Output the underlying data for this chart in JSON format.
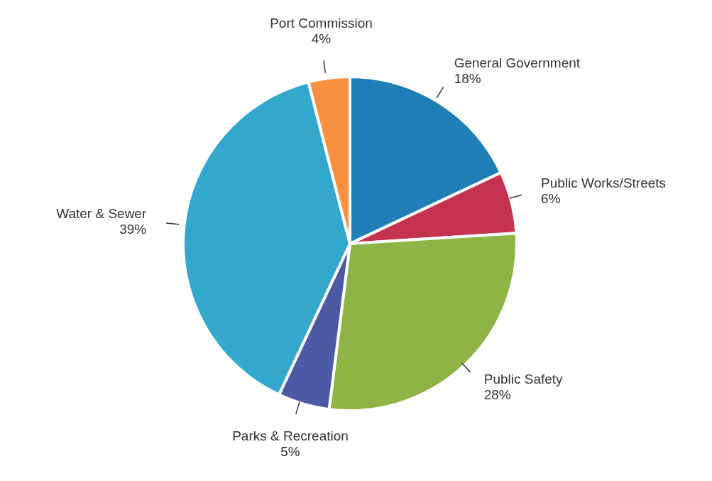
{
  "chart_data": {
    "type": "pie",
    "categories": [
      "General Government",
      "Public Works/Streets",
      "Public Safety",
      "Parks & Recreation",
      "Water & Sewer",
      "Port Commission"
    ],
    "values": [
      18,
      6,
      28,
      5,
      39,
      4
    ],
    "colors": [
      "#1f7fb6",
      "#c4324f",
      "#8db445",
      "#4c5aa5",
      "#33a8cc",
      "#f7913f"
    ],
    "value_labels": [
      "18%",
      "6%",
      "28%",
      "5%",
      "39%",
      "4%"
    ],
    "legend": false
  }
}
